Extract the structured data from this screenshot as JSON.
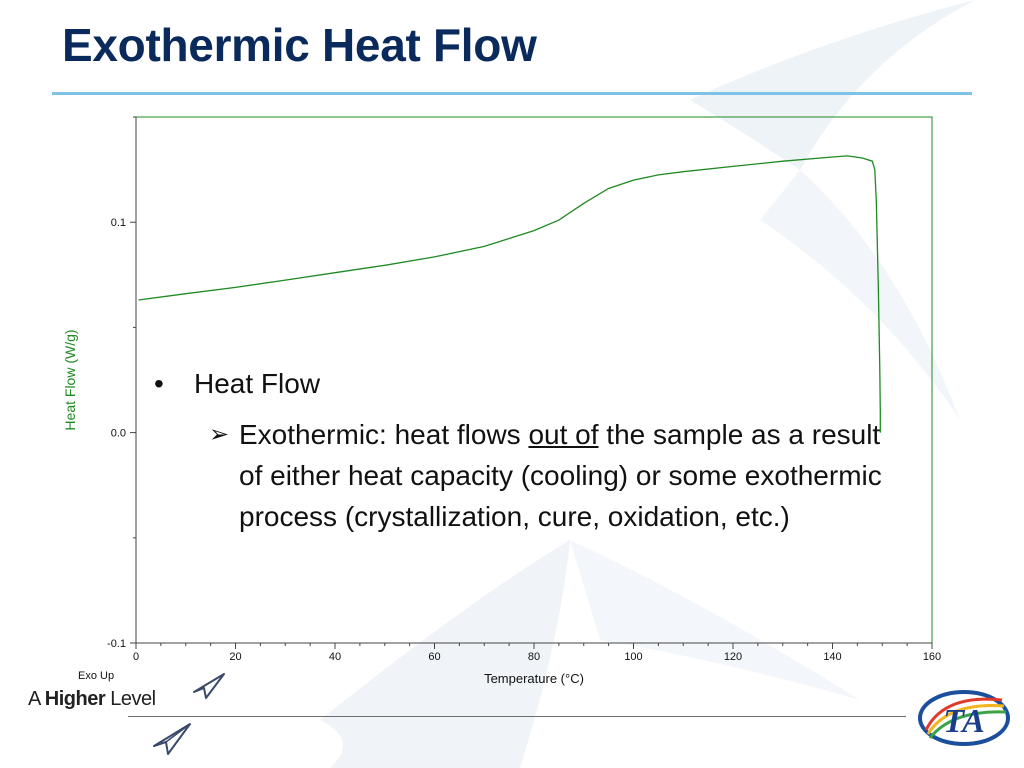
{
  "slide": {
    "title": "Exothermic Heat Flow",
    "bullets": {
      "level1": "Heat Flow",
      "level2_pre": "Exothermic:  heat flows ",
      "level2_underlined": "out of",
      "level2_post": " the sample as a result of either heat capacity (cooling) or some exothermic process (crystallization, cure, oxidation, etc.)"
    },
    "footer": {
      "tagline_a": "A ",
      "tagline_higher": "Higher",
      "tagline_level": " Level"
    },
    "logo_text": "TA",
    "icons": [
      "bullet-dot-icon",
      "arrow-bullet-icon",
      "ta-logo-icon",
      "paper-plane-icon"
    ]
  },
  "chart_data": {
    "type": "line",
    "title": "",
    "xlabel": "Temperature (°C)",
    "ylabel": "Heat Flow (W/g)",
    "annotation": "Exo Up",
    "xlim": [
      0,
      160
    ],
    "ylim": [
      -0.1,
      0.15
    ],
    "x_ticks": [
      0,
      20,
      40,
      60,
      80,
      100,
      120,
      140,
      160
    ],
    "y_ticks": [
      0.1,
      0.0,
      -0.1
    ],
    "y_tick_labels": [
      "0.1",
      "0.0",
      "-0.1"
    ],
    "grid": false,
    "line_color": "#1e8a22",
    "series": [
      {
        "x": [
          0.5,
          10,
          20,
          30,
          40,
          50,
          60,
          70,
          80,
          85,
          90,
          95,
          100,
          105,
          110,
          120,
          130,
          140,
          143,
          146,
          148,
          148.5,
          148.8,
          149.2,
          149.5,
          149.6,
          149.6
        ],
        "y": [
          0.063,
          0.066,
          0.069,
          0.0725,
          0.076,
          0.0795,
          0.0835,
          0.0885,
          0.096,
          0.101,
          0.109,
          0.116,
          0.12,
          0.1225,
          0.124,
          0.1265,
          0.129,
          0.131,
          0.1315,
          0.1305,
          0.129,
          0.125,
          0.11,
          0.07,
          0.03,
          0.01,
          0.0
        ]
      }
    ]
  }
}
